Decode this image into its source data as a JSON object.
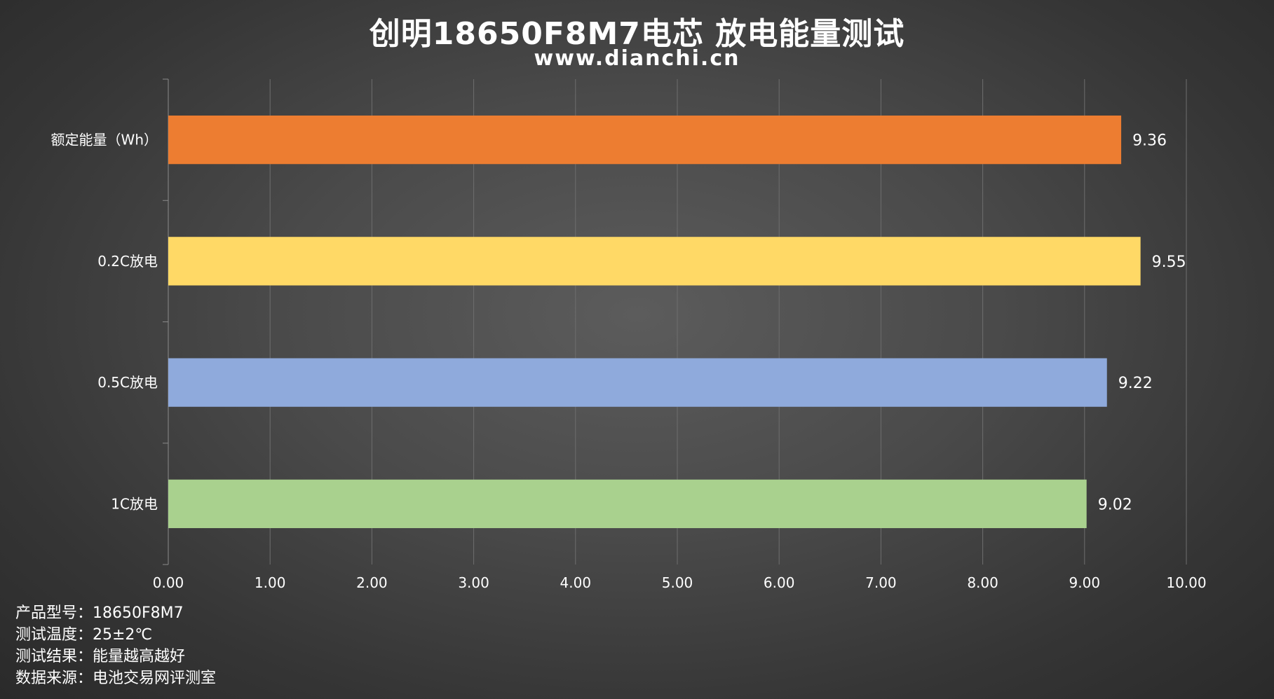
{
  "header": {
    "title": "创明18650F8M7电芯 放电能量测试",
    "subtitle": "www.dianchi.cn"
  },
  "chart_data": {
    "type": "bar",
    "orientation": "horizontal",
    "categories": [
      "额定能量（Wh）",
      "0.2C放电",
      "0.5C放电",
      "1C放电"
    ],
    "values": [
      9.36,
      9.55,
      9.22,
      9.02
    ],
    "value_labels": [
      "9.36",
      "9.55",
      "9.22",
      "9.02"
    ],
    "bar_colors": [
      "#ED7D31",
      "#FFD966",
      "#8FAADC",
      "#A9D18E"
    ],
    "xlim": [
      0,
      10
    ],
    "xticks": [
      "0.00",
      "1.00",
      "2.00",
      "3.00",
      "4.00",
      "5.00",
      "6.00",
      "7.00",
      "8.00",
      "9.00",
      "10.00"
    ],
    "grid": true,
    "legend": "none",
    "title": "创明18650F8M7电芯 放电能量测试",
    "xlabel": "",
    "ylabel": ""
  },
  "notes": [
    "产品型号：18650F8M7",
    "测试温度：25±2℃",
    "测试结果：能量越高越好",
    "数据来源：电池交易网评测室"
  ]
}
